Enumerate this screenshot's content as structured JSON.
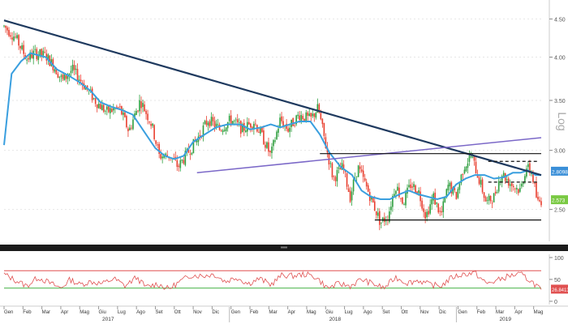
{
  "chart_data": [
    {
      "type": "candlestick",
      "scale": "log",
      "scale_label": "Log",
      "ylim": [
        2.3,
        4.7
      ],
      "y_ticks": [
        {
          "value": 2.5,
          "label": "2.50"
        },
        {
          "value": 3.0,
          "label": "3.00"
        },
        {
          "value": 3.5,
          "label": "3.50"
        },
        {
          "value": 4.0,
          "label": "4.00"
        },
        {
          "value": 4.5,
          "label": "4.50"
        }
      ],
      "x_ticks": [
        "Gen",
        "Feb",
        "Mar",
        "Apr",
        "Mag",
        "Giu",
        "Lug",
        "Ago",
        "Set",
        "Ott",
        "Nov",
        "Dic",
        "Gen",
        "Feb",
        "Mar",
        "Apr",
        "Mag",
        "Giu",
        "Lug",
        "Ago",
        "Set",
        "Ott",
        "Nov",
        "Dic",
        "Gen",
        "Feb",
        "Mar",
        "Apr",
        "Mag"
      ],
      "x_years": [
        {
          "label": "2017",
          "month_index": 5.5
        },
        {
          "label": "2018",
          "month_index": 17.5
        },
        {
          "label": "2019",
          "month_index": 26.5
        }
      ],
      "price_path": [
        [
          0,
          4.4
        ],
        [
          0.6,
          4.25
        ],
        [
          1.2,
          3.98
        ],
        [
          1.6,
          4.05
        ],
        [
          2.2,
          4.02
        ],
        [
          2.6,
          3.9
        ],
        [
          3.1,
          3.72
        ],
        [
          3.6,
          3.85
        ],
        [
          4.2,
          3.68
        ],
        [
          4.8,
          3.5
        ],
        [
          5.4,
          3.38
        ],
        [
          6.1,
          3.42
        ],
        [
          6.6,
          3.18
        ],
        [
          7.2,
          3.5
        ],
        [
          7.8,
          3.25
        ],
        [
          8.2,
          2.95
        ],
        [
          8.8,
          2.95
        ],
        [
          9.2,
          2.85
        ],
        [
          9.6,
          2.95
        ],
        [
          10.2,
          3.1
        ],
        [
          10.8,
          3.3
        ],
        [
          11.4,
          3.2
        ],
        [
          12.0,
          3.3
        ],
        [
          12.6,
          3.2
        ],
        [
          13.2,
          3.28
        ],
        [
          13.6,
          3.15
        ],
        [
          14.1,
          2.95
        ],
        [
          14.6,
          3.3
        ],
        [
          15.0,
          3.2
        ],
        [
          15.6,
          3.35
        ],
        [
          16.2,
          3.3
        ],
        [
          16.6,
          3.42
        ],
        [
          17.0,
          3.05
        ],
        [
          17.4,
          2.75
        ],
        [
          17.9,
          2.85
        ],
        [
          18.3,
          2.6
        ],
        [
          18.7,
          2.85
        ],
        [
          19.1,
          2.7
        ],
        [
          19.5,
          2.55
        ],
        [
          19.9,
          2.4
        ],
        [
          20.3,
          2.45
        ],
        [
          20.7,
          2.7
        ],
        [
          21.1,
          2.55
        ],
        [
          21.5,
          2.7
        ],
        [
          21.9,
          2.65
        ],
        [
          22.3,
          2.45
        ],
        [
          22.7,
          2.6
        ],
        [
          23.1,
          2.45
        ],
        [
          23.5,
          2.7
        ],
        [
          23.9,
          2.6
        ],
        [
          24.3,
          2.85
        ],
        [
          24.7,
          2.95
        ],
        [
          25.1,
          2.75
        ],
        [
          25.5,
          2.55
        ],
        [
          25.9,
          2.6
        ],
        [
          26.3,
          2.8
        ],
        [
          26.7,
          2.72
        ],
        [
          27.0,
          2.68
        ],
        [
          27.3,
          2.65
        ],
        [
          27.6,
          2.85
        ],
        [
          27.9,
          2.8
        ],
        [
          28.2,
          2.55
        ],
        [
          28.4,
          2.57
        ]
      ],
      "moving_average_path": [
        [
          0,
          3.05
        ],
        [
          0.4,
          3.8
        ],
        [
          0.9,
          3.95
        ],
        [
          1.4,
          4.05
        ],
        [
          2.2,
          4.0
        ],
        [
          2.8,
          3.85
        ],
        [
          3.4,
          3.78
        ],
        [
          4.0,
          3.7
        ],
        [
          4.6,
          3.6
        ],
        [
          5.1,
          3.48
        ],
        [
          5.7,
          3.43
        ],
        [
          6.2,
          3.4
        ],
        [
          6.8,
          3.35
        ],
        [
          7.4,
          3.18
        ],
        [
          8.0,
          3.02
        ],
        [
          8.5,
          2.95
        ],
        [
          9.0,
          2.92
        ],
        [
          9.5,
          2.95
        ],
        [
          10.0,
          3.08
        ],
        [
          10.6,
          3.15
        ],
        [
          11.2,
          3.22
        ],
        [
          11.8,
          3.25
        ],
        [
          12.5,
          3.25
        ],
        [
          13.0,
          3.2
        ],
        [
          13.6,
          3.22
        ],
        [
          14.1,
          3.25
        ],
        [
          14.6,
          3.22
        ],
        [
          15.1,
          3.25
        ],
        [
          15.6,
          3.28
        ],
        [
          16.2,
          3.28
        ],
        [
          16.7,
          3.15
        ],
        [
          17.2,
          2.98
        ],
        [
          17.8,
          2.85
        ],
        [
          18.4,
          2.78
        ],
        [
          18.9,
          2.65
        ],
        [
          19.4,
          2.6
        ],
        [
          19.9,
          2.58
        ],
        [
          20.4,
          2.58
        ],
        [
          20.9,
          2.62
        ],
        [
          21.4,
          2.65
        ],
        [
          21.9,
          2.62
        ],
        [
          22.4,
          2.6
        ],
        [
          22.9,
          2.58
        ],
        [
          23.4,
          2.6
        ],
        [
          23.9,
          2.7
        ],
        [
          24.4,
          2.75
        ],
        [
          24.9,
          2.78
        ],
        [
          25.4,
          2.78
        ],
        [
          25.9,
          2.75
        ],
        [
          26.4,
          2.76
        ],
        [
          26.9,
          2.8
        ],
        [
          27.3,
          2.8
        ],
        [
          27.7,
          2.82
        ],
        [
          28.1,
          2.78
        ],
        [
          28.4,
          2.78
        ]
      ],
      "trendlines": [
        {
          "from": [
            0,
            4.48
          ],
          "to": [
            28.4,
            2.78
          ],
          "color": "#1f3a5f",
          "style": "solid"
        },
        {
          "from": [
            10.2,
            2.8
          ],
          "to": [
            28.4,
            3.12
          ],
          "color": "#7b68c8",
          "style": "solid"
        }
      ],
      "horizontal_levels": [
        {
          "value": 2.97,
          "from": 16.7,
          "to": 28.4,
          "style": "solid"
        },
        {
          "value": 2.42,
          "from": 19.6,
          "to": 28.4,
          "style": "solid"
        },
        {
          "value": 2.9,
          "from": 25.6,
          "to": 28.2,
          "style": "dashed"
        },
        {
          "value": 2.72,
          "from": 25.6,
          "to": 28.2,
          "style": "dashed"
        }
      ],
      "last_value_labels": [
        {
          "label": "2.8098",
          "value": 2.8098,
          "color": "#3a8fd8"
        },
        {
          "label": "2.573",
          "value": 2.573,
          "color": "#7ac943"
        }
      ],
      "colors": {
        "up": "#2e9e3e",
        "down": "#e83e2e",
        "moving_average": "#3a9fdf"
      }
    },
    {
      "type": "line",
      "ylim": [
        0,
        100
      ],
      "y_ticks": [
        {
          "value": 100,
          "label": "100"
        },
        {
          "value": 50,
          "label": "50"
        },
        {
          "value": 0,
          "label": "0"
        }
      ],
      "levels": [
        {
          "value": 70,
          "color": "#e05050"
        },
        {
          "value": 30,
          "color": "#40b040"
        }
      ],
      "values": [
        [
          0,
          62
        ],
        [
          0.6,
          48
        ],
        [
          1.2,
          35
        ],
        [
          1.8,
          55
        ],
        [
          2.4,
          42
        ],
        [
          3.0,
          30
        ],
        [
          3.5,
          50
        ],
        [
          4.0,
          38
        ],
        [
          4.6,
          45
        ],
        [
          5.2,
          40
        ],
        [
          5.8,
          52
        ],
        [
          6.4,
          35
        ],
        [
          7.0,
          55
        ],
        [
          7.5,
          32
        ],
        [
          8.1,
          40
        ],
        [
          8.7,
          28
        ],
        [
          9.3,
          45
        ],
        [
          9.9,
          60
        ],
        [
          10.5,
          58
        ],
        [
          11.1,
          62
        ],
        [
          11.7,
          45
        ],
        [
          12.3,
          55
        ],
        [
          12.9,
          40
        ],
        [
          13.5,
          52
        ],
        [
          14.1,
          38
        ],
        [
          14.7,
          60
        ],
        [
          15.3,
          58
        ],
        [
          15.9,
          62
        ],
        [
          16.5,
          55
        ],
        [
          17.1,
          30
        ],
        [
          17.7,
          40
        ],
        [
          18.3,
          35
        ],
        [
          18.9,
          50
        ],
        [
          19.5,
          40
        ],
        [
          20.1,
          30
        ],
        [
          20.7,
          55
        ],
        [
          21.3,
          42
        ],
        [
          21.9,
          48
        ],
        [
          22.5,
          38
        ],
        [
          23.1,
          35
        ],
        [
          23.7,
          55
        ],
        [
          24.3,
          62
        ],
        [
          24.9,
          65
        ],
        [
          25.5,
          40
        ],
        [
          26.1,
          48
        ],
        [
          26.7,
          58
        ],
        [
          27.3,
          62
        ],
        [
          27.9,
          45
        ],
        [
          28.4,
          26.8413
        ]
      ],
      "last_value_label": {
        "label": "26.8413",
        "value": 26.8413,
        "color": "#e05050"
      },
      "color": "#e05050"
    }
  ]
}
